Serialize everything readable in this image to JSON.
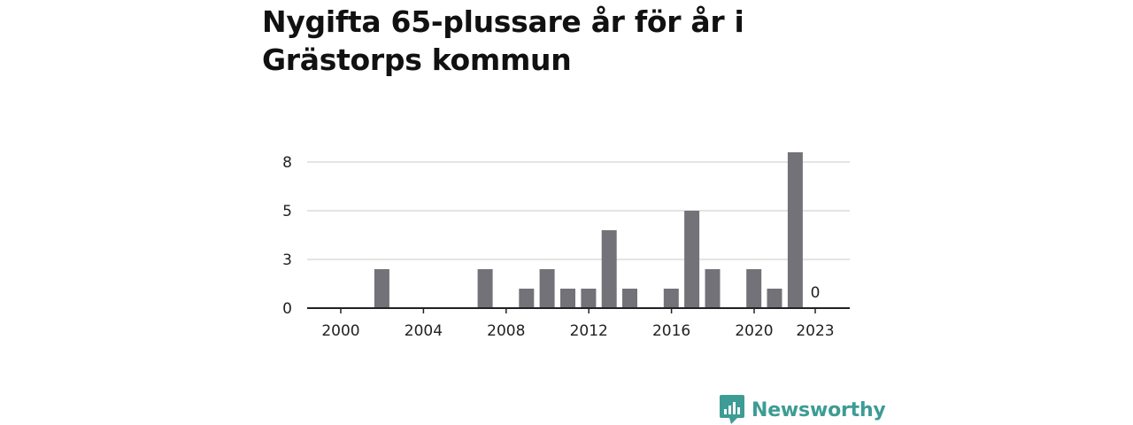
{
  "title": "Nygifta 65-plussare år för år i Grästorps kommun",
  "brand": {
    "name": "Newsworthy",
    "logo_icon": "newsworthy-logo-icon",
    "color": "#3d9c95"
  },
  "chart_data": {
    "type": "bar",
    "title": "Nygifta 65-plussare år för år i Grästorps kommun",
    "xlabel": "",
    "ylabel": "",
    "categories": [
      "2000",
      "2001",
      "2002",
      "2003",
      "2004",
      "2005",
      "2006",
      "2007",
      "2008",
      "2009",
      "2010",
      "2011",
      "2012",
      "2013",
      "2014",
      "2015",
      "2016",
      "2017",
      "2018",
      "2019",
      "2020",
      "2021",
      "2022",
      "2023"
    ],
    "values": [
      0,
      2,
      0,
      0,
      0,
      0,
      2,
      0,
      1,
      2,
      1,
      1,
      4,
      1,
      0,
      1,
      5,
      2,
      0,
      2,
      1,
      8,
      0,
      0
    ],
    "x_tick_labels": [
      "2000",
      "2004",
      "2008",
      "2012",
      "2016",
      "2020",
      "2023"
    ],
    "y_ticks": [
      0,
      3,
      5,
      8
    ],
    "ylim": [
      0,
      8
    ],
    "grid": true,
    "bar_color": "#737278",
    "data_labels": [
      {
        "category": "2023",
        "text": "0"
      }
    ]
  }
}
